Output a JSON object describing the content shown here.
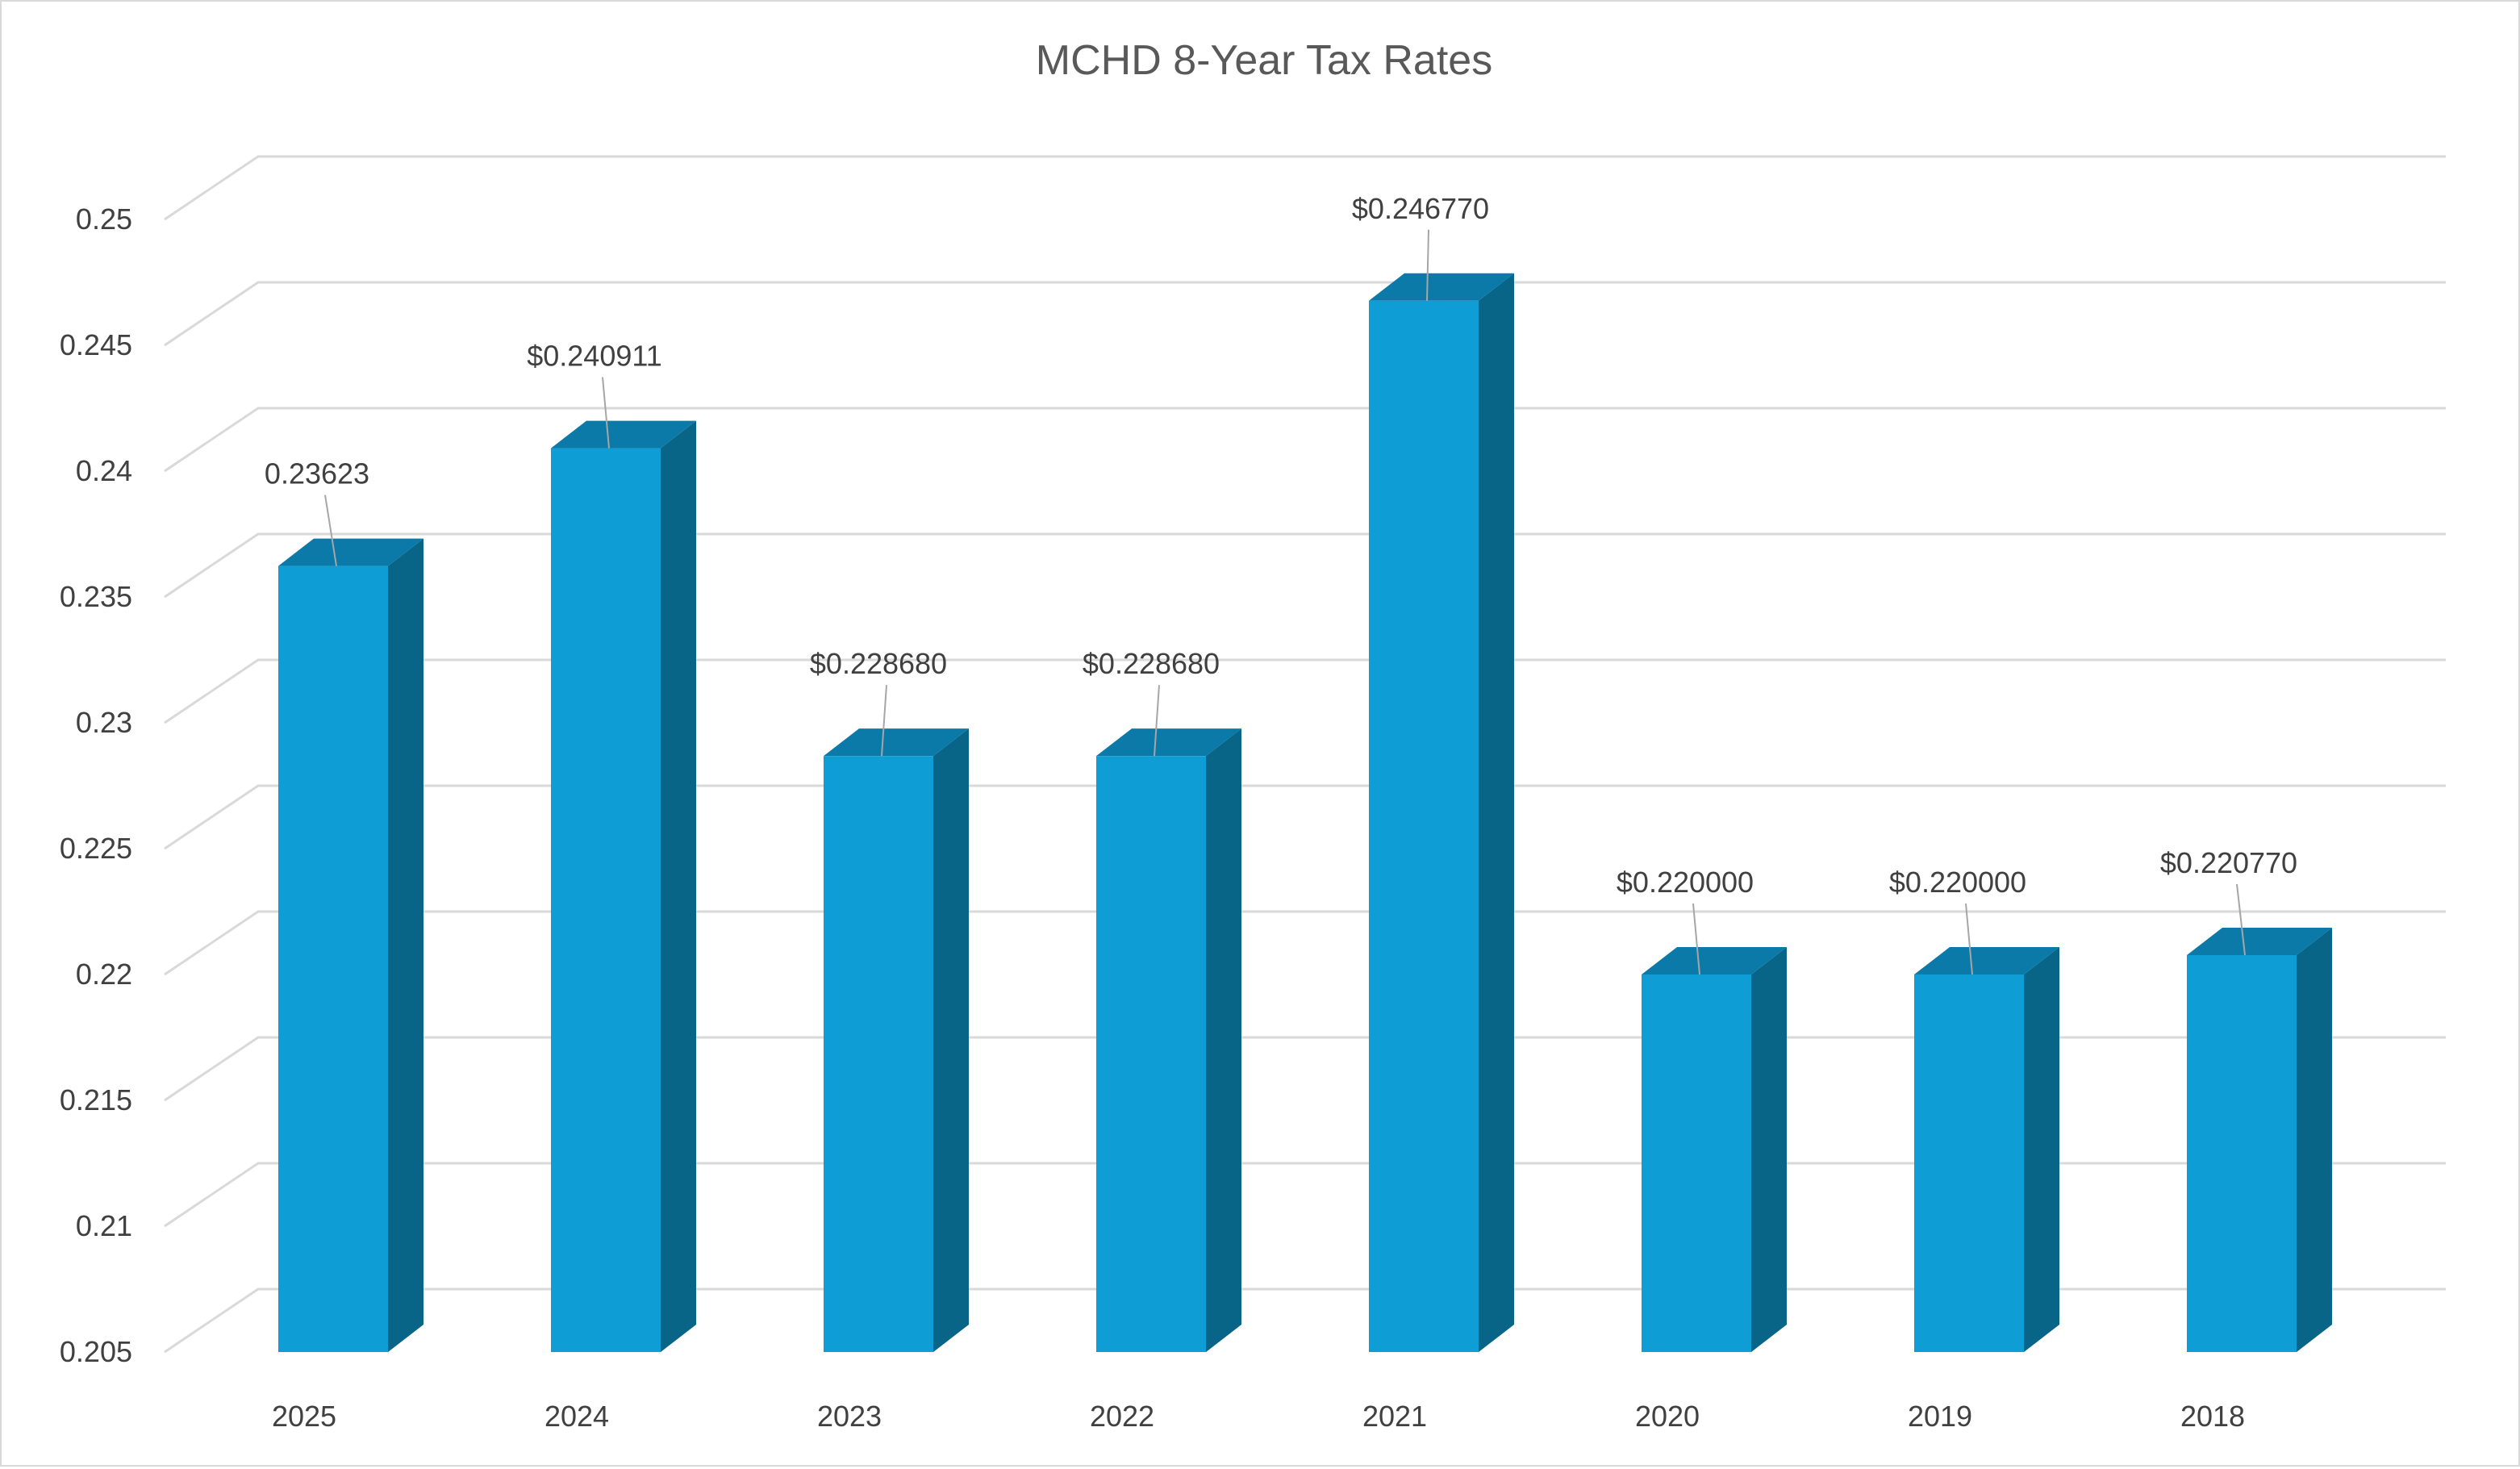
{
  "chart_data": {
    "type": "bar",
    "title": "MCHD 8-Year Tax Rates",
    "xlabel": "",
    "ylabel": "",
    "ylim": [
      0.205,
      0.25
    ],
    "y_ticks": [
      "0.205",
      "0.21",
      "0.215",
      "0.22",
      "0.225",
      "0.23",
      "0.235",
      "0.24",
      "0.245",
      "0.25"
    ],
    "categories": [
      "2025",
      "2024",
      "2023",
      "2022",
      "2021",
      "2020",
      "2019",
      "2018"
    ],
    "values": [
      0.23623,
      0.240911,
      0.22868,
      0.22868,
      0.24677,
      0.22,
      0.22,
      0.22077
    ],
    "data_labels": [
      "0.23623",
      "$0.240911",
      "$0.228680",
      "$0.228680",
      "$0.246770",
      "$0.220000",
      "$0.220000",
      "$0.220770"
    ],
    "grid": true,
    "legend": "none",
    "colors": {
      "bar_front": "#0f9dd6",
      "bar_side": "#086587",
      "bar_top": "#0b7aa8",
      "grid": "#d9d9d9",
      "text": "#404040",
      "title": "#595959"
    }
  }
}
